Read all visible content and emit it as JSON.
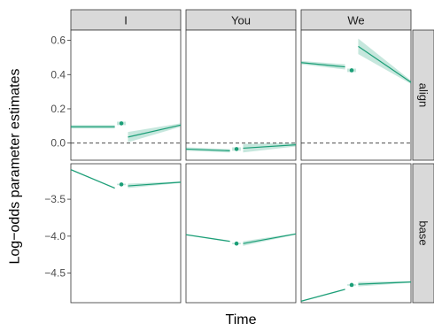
{
  "chart_data": {
    "type": "line",
    "title": "",
    "xlabel": "Time",
    "ylabel": "Log−odds parameter estimates",
    "columns": [
      "I",
      "You",
      "We"
    ],
    "rows": [
      {
        "label": "align",
        "yticks": [
          "0.0",
          "0.2",
          "0.4",
          "0.6"
        ],
        "ytick_values": [
          0.0,
          0.2,
          0.4,
          0.6
        ],
        "ylim": [
          -0.1,
          0.66
        ],
        "zero_line": true
      },
      {
        "label": "base",
        "yticks": [
          "−3.5",
          "−4.0",
          "−4.5"
        ],
        "ytick_values": [
          -3.5,
          -4.0,
          -4.5
        ],
        "ylim": [
          -4.9,
          -3.02
        ],
        "zero_line": false
      }
    ],
    "panels": [
      {
        "row": 0,
        "col": 0,
        "pre": {
          "x": [
            0.0,
            0.4
          ],
          "y": [
            0.095,
            0.095
          ],
          "lo": [
            0.085,
            0.085
          ],
          "hi": [
            0.105,
            0.105
          ]
        },
        "point": {
          "x": 0.46,
          "y": 0.115,
          "lo": 0.105,
          "hi": 0.125
        },
        "post": {
          "x": [
            0.52,
            1.0
          ],
          "y": [
            0.035,
            0.105
          ],
          "lo": [
            0.005,
            0.095
          ],
          "hi": [
            0.065,
            0.115
          ]
        }
      },
      {
        "row": 0,
        "col": 1,
        "pre": {
          "x": [
            0.0,
            0.4
          ],
          "y": [
            -0.035,
            -0.045
          ],
          "lo": [
            -0.045,
            -0.055
          ],
          "hi": [
            -0.025,
            -0.035
          ]
        },
        "point": {
          "x": 0.46,
          "y": -0.035,
          "lo": -0.045,
          "hi": -0.025
        },
        "post": {
          "x": [
            0.52,
            1.0
          ],
          "y": [
            -0.03,
            -0.01
          ],
          "lo": [
            -0.055,
            -0.02
          ],
          "hi": [
            -0.005,
            0.0
          ]
        }
      },
      {
        "row": 0,
        "col": 2,
        "pre": {
          "x": [
            0.0,
            0.4
          ],
          "y": [
            0.47,
            0.445
          ],
          "lo": [
            0.46,
            0.43
          ],
          "hi": [
            0.48,
            0.46
          ]
        },
        "point": {
          "x": 0.46,
          "y": 0.425,
          "lo": 0.415,
          "hi": 0.435
        },
        "post": {
          "x": [
            0.52,
            1.0
          ],
          "y": [
            0.565,
            0.355
          ],
          "lo": [
            0.52,
            0.345
          ],
          "hi": [
            0.61,
            0.365
          ]
        }
      },
      {
        "row": 1,
        "col": 0,
        "pre": {
          "x": [
            0.0,
            0.4
          ],
          "y": [
            -3.1,
            -3.35
          ],
          "lo": [
            -3.11,
            -3.36
          ],
          "hi": [
            -3.09,
            -3.34
          ]
        },
        "point": {
          "x": 0.46,
          "y": -3.3,
          "lo": -3.31,
          "hi": -3.29
        },
        "post": {
          "x": [
            0.52,
            1.0
          ],
          "y": [
            -3.32,
            -3.27
          ],
          "lo": [
            -3.35,
            -3.28
          ],
          "hi": [
            -3.29,
            -3.26
          ]
        }
      },
      {
        "row": 1,
        "col": 1,
        "pre": {
          "x": [
            0.0,
            0.4
          ],
          "y": [
            -3.98,
            -4.07
          ],
          "lo": [
            -3.99,
            -4.08
          ],
          "hi": [
            -3.97,
            -4.06
          ]
        },
        "point": {
          "x": 0.46,
          "y": -4.1,
          "lo": -4.11,
          "hi": -4.09
        },
        "post": {
          "x": [
            0.52,
            1.0
          ],
          "y": [
            -4.1,
            -3.97
          ],
          "lo": [
            -4.13,
            -3.98
          ],
          "hi": [
            -4.07,
            -3.96
          ]
        }
      },
      {
        "row": 1,
        "col": 2,
        "pre": {
          "x": [
            0.0,
            0.4
          ],
          "y": [
            -4.88,
            -4.72
          ],
          "lo": [
            -4.89,
            -4.73
          ],
          "hi": [
            -4.87,
            -4.71
          ]
        },
        "point": {
          "x": 0.46,
          "y": -4.66,
          "lo": -4.67,
          "hi": -4.65
        },
        "post": {
          "x": [
            0.52,
            1.0
          ],
          "y": [
            -4.65,
            -4.62
          ],
          "lo": [
            -4.68,
            -4.63
          ],
          "hi": [
            -4.62,
            -4.61
          ]
        }
      }
    ],
    "colors": {
      "series": "#1b9e77",
      "strip": "#d9d9d9",
      "frame": "#333333"
    },
    "grid": false,
    "legend": "none"
  }
}
